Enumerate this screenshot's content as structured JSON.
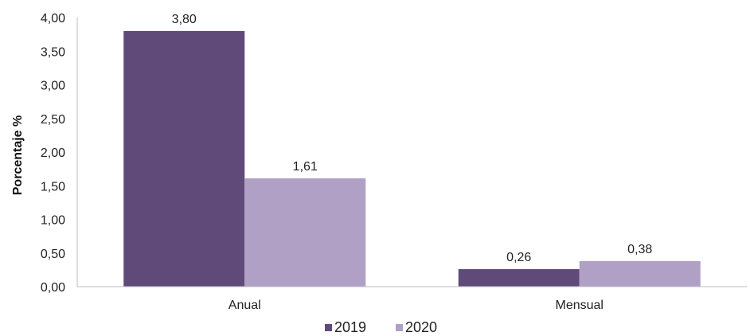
{
  "chart_data": {
    "type": "bar",
    "title": "",
    "xlabel": "",
    "ylabel": "Porcentaje %",
    "categories": [
      "Anual",
      "Mensual"
    ],
    "series": [
      {
        "name": "2019",
        "values": [
          3.8,
          0.26
        ],
        "labels": [
          "3,80",
          "0,26"
        ],
        "color": "#5f4a7a"
      },
      {
        "name": "2020",
        "values": [
          1.61,
          0.38
        ],
        "labels": [
          "1,61",
          "0,38"
        ],
        "color": "#b1a0c6"
      }
    ],
    "ylim": [
      0,
      4
    ],
    "yticks": [
      0,
      0.5,
      1,
      1.5,
      2,
      2.5,
      3,
      3.5,
      4
    ],
    "ytick_labels": [
      "0,00",
      "0,50",
      "1,00",
      "1,50",
      "2,00",
      "2,50",
      "3,00",
      "3,50",
      "4,00"
    ],
    "grid": false,
    "legend_position": "bottom"
  }
}
